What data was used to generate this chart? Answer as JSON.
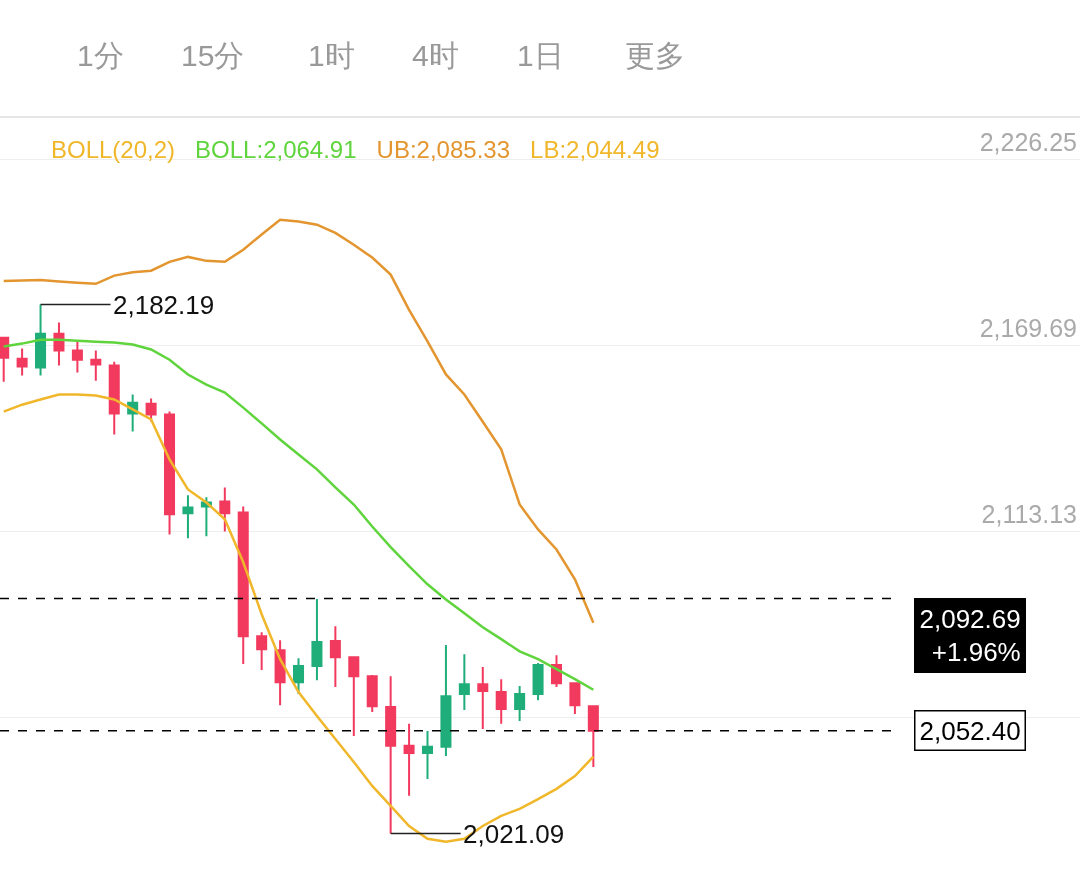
{
  "chart_data": {
    "type": "candlestick",
    "categories": [
      null,
      null,
      null,
      null,
      null,
      null,
      null,
      null,
      null,
      null,
      null,
      null,
      null,
      null,
      null,
      null,
      null,
      null,
      null,
      null,
      null,
      null,
      null,
      null,
      null,
      null,
      null,
      null,
      null,
      null,
      null,
      null,
      null
    ],
    "ohlc": [
      [
        2172.1,
        2172.4,
        2158.7,
        2166.0
      ],
      [
        2165.7,
        2168.8,
        2160.6,
        2163.3
      ],
      [
        2163.0,
        2182.19,
        2160.6,
        2173.3
      ],
      [
        2173.3,
        2176.7,
        2163.6,
        2168.2
      ],
      [
        2168.2,
        2171.2,
        2161.5,
        2165.4
      ],
      [
        2165.4,
        2168.2,
        2159.0,
        2163.9
      ],
      [
        2163.6,
        2164.8,
        2142.6,
        2149.0
      ],
      [
        2149.0,
        2154.8,
        2143.5,
        2152.3
      ],
      [
        2152.0,
        2153.6,
        2146.6,
        2148.7
      ],
      [
        2148.7,
        2149.6,
        2112.2,
        2118.3
      ],
      [
        2118.6,
        2124.1,
        2111.0,
        2120.4
      ],
      [
        2120.7,
        2123.5,
        2111.6,
        2121.9
      ],
      [
        2122.2,
        2126.5,
        2113.1,
        2118.6
      ],
      [
        2118.9,
        2120.7,
        2072.7,
        2081.2
      ],
      [
        2081.2,
        2082.4,
        2070.9,
        2077.2
      ],
      [
        2076.9,
        2080.0,
        2060.2,
        2067.2
      ],
      [
        2067.2,
        2074.5,
        2063.6,
        2072.1
      ],
      [
        2072.1,
        2092.5,
        2067.8,
        2079.4
      ],
      [
        2079.7,
        2084.2,
        2065.7,
        2074.8
      ],
      [
        2074.8,
        2075.1,
        2050.8,
        2069.0
      ],
      [
        2069.0,
        2069.4,
        2058.1,
        2059.9
      ],
      [
        2059.6,
        2069.0,
        2021.09,
        2047.8
      ],
      [
        2047.8,
        2054.5,
        2032.6,
        2045.6
      ],
      [
        2045.6,
        2052.3,
        2037.7,
        2047.5
      ],
      [
        2047.5,
        2078.5,
        2044.7,
        2062.9
      ],
      [
        2063.6,
        2075.7,
        2058.7,
        2066.6
      ],
      [
        2066.6,
        2071.8,
        2052.9,
        2064.5
      ],
      [
        2064.2,
        2068.1,
        2054.5,
        2059.0
      ],
      [
        2059.0,
        2066.0,
        2055.4,
        2063.6
      ],
      [
        2063.6,
        2073.0,
        2061.7,
        2072.4
      ],
      [
        2072.4,
        2075.4,
        2065.7,
        2066.9
      ],
      [
        2066.9,
        2066.9,
        2057.5,
        2060.2
      ],
      [
        2059.9,
        2059.9,
        2041.4,
        2052.4
      ]
    ],
    "colors": [
      "#f23a5e",
      "#f23a5e",
      "#1fad7a",
      "#f23a5e",
      "#f23a5e",
      "#f23a5e",
      "#f23a5e",
      "#1fad7a",
      "#f23a5e",
      "#f23a5e",
      "#1fad7a",
      "#1fad7a",
      "#f23a5e",
      "#f23a5e",
      "#f23a5e",
      "#f23a5e",
      "#1fad7a",
      "#1fad7a",
      "#f23a5e",
      "#f23a5e",
      "#f23a5e",
      "#f23a5e",
      "#f23a5e",
      "#1fad7a",
      "#1fad7a",
      "#1fad7a",
      "#f23a5e",
      "#f23a5e",
      "#1fad7a",
      "#1fad7a",
      "#f23a5e",
      "#f23a5e",
      "#f23a5e"
    ],
    "series": [
      {
        "type": "line",
        "name": "BOLL:2,064.91",
        "color": "#5fd43c",
        "values": [
          2169.4,
          2170.3,
          2171.5,
          2171.5,
          2171.2,
          2170.9,
          2170.6,
          2170.0,
          2168.5,
          2165.4,
          2160.9,
          2157.8,
          2155.4,
          2150.8,
          2146.0,
          2141.1,
          2136.5,
          2132.0,
          2126.5,
          2121.3,
          2114.6,
          2108.3,
          2102.5,
          2097.0,
          2092.4,
          2088.2,
          2083.9,
          2080.3,
          2076.6,
          2074.2,
          2071.2,
          2068.1,
          2064.9
        ]
      },
      {
        "type": "line",
        "name": "UB:2,085.33",
        "color": "#e3952f",
        "values": [
          2189.4,
          2189.5,
          2189.7,
          2189.2,
          2188.8,
          2188.5,
          2191.0,
          2192.0,
          2192.5,
          2195.2,
          2196.7,
          2195.5,
          2195.2,
          2198.9,
          2203.5,
          2208.0,
          2207.5,
          2206.5,
          2204.0,
          2200.4,
          2196.5,
          2191.3,
          2180.6,
          2171.0,
          2160.9,
          2154.8,
          2146.5,
          2138.1,
          2121.3,
          2113.7,
          2107.6,
          2098.5,
          2085.3
        ]
      },
      {
        "type": "line",
        "name": "LB:2,044.49",
        "color": "#f0b72a",
        "values": [
          2149.6,
          2151.7,
          2153.3,
          2154.8,
          2154.8,
          2154.5,
          2153.3,
          2150.3,
          2147.2,
          2135.0,
          2125.9,
          2121.9,
          2116.8,
          2103.7,
          2087.9,
          2074.2,
          2064.2,
          2056.9,
          2049.9,
          2042.9,
          2035.6,
          2029.5,
          2023.4,
          2019.5,
          2018.6,
          2019.5,
          2023.4,
          2026.5,
          2028.6,
          2031.6,
          2034.7,
          2038.6,
          2044.5
        ]
      }
    ],
    "legend_title": "BOLL(20,2)",
    "ylim": [
      2010,
      2239
    ],
    "yticks": [
      {
        "value": 2226.25,
        "label": "2,226.25"
      },
      {
        "value": 2169.69,
        "label": "2,169.69"
      },
      {
        "value": 2113.13,
        "label": "2,113.13"
      },
      {
        "value": 2056.57,
        "label": null
      }
    ],
    "tick_labels": "y",
    "grid": "y",
    "line_style": "solid",
    "ref_lines": [
      {
        "axis": "y",
        "value": 2092.69,
        "label": "2,092.69\n+1.96%",
        "color": "#000000",
        "line_style": "dashed"
      },
      {
        "axis": "y",
        "value": 2052.4,
        "label": "2,052.40",
        "color": "#000000",
        "line_style": "dashed"
      }
    ],
    "annotations": [
      "1分",
      "15分",
      "1时",
      "4时",
      "1日",
      "更多",
      "2,182.19",
      "2,021.09"
    ]
  }
}
